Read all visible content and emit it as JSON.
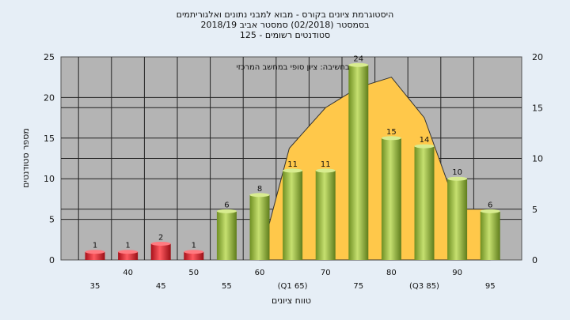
{
  "chart_data": {
    "type": "bar",
    "title_lines": [
      "היסטוגרמת ציונים בקורס - מבוא למבני נתונים ואלגוריתמים",
      "בסמסטר  (02/2018)  סמסטר אביב 2018/19",
      "סטודנטים רשומים - 125"
    ],
    "annotation": "בחשיבה: ציון סופי במחשב המרכזי",
    "xlabel": "טווח ציונים",
    "ylabel": "מספר סטודנטים",
    "categories": [
      "35",
      "40",
      "45",
      "50",
      "55",
      "60",
      "(Q1 65)",
      "70",
      "75",
      "80",
      "(Q3 85)",
      "90",
      "95"
    ],
    "values": [
      1,
      1,
      2,
      1,
      6,
      8,
      11,
      11,
      24,
      15,
      14,
      10,
      6
    ],
    "bar_colors": [
      "red",
      "red",
      "red",
      "red",
      "green",
      "green",
      "green",
      "green",
      "green",
      "green",
      "green",
      "green",
      "green"
    ],
    "area_curve": [
      0,
      0,
      0,
      0,
      0,
      0,
      11,
      15,
      17,
      18,
      14,
      5,
      5
    ],
    "ylim": [
      0,
      25
    ],
    "yticks": [
      0,
      5,
      10,
      15,
      20,
      25
    ],
    "y2lim": [
      0,
      20
    ],
    "y2ticks": [
      0,
      5,
      10,
      15,
      20
    ],
    "grid": true,
    "colors": {
      "plot_bg": "#b4b4b4",
      "page_bg": "#e6eef6",
      "area": "#ffc84a",
      "bar_red": "#e0202a",
      "bar_green": "#9cc23c",
      "line": "#333333"
    }
  }
}
